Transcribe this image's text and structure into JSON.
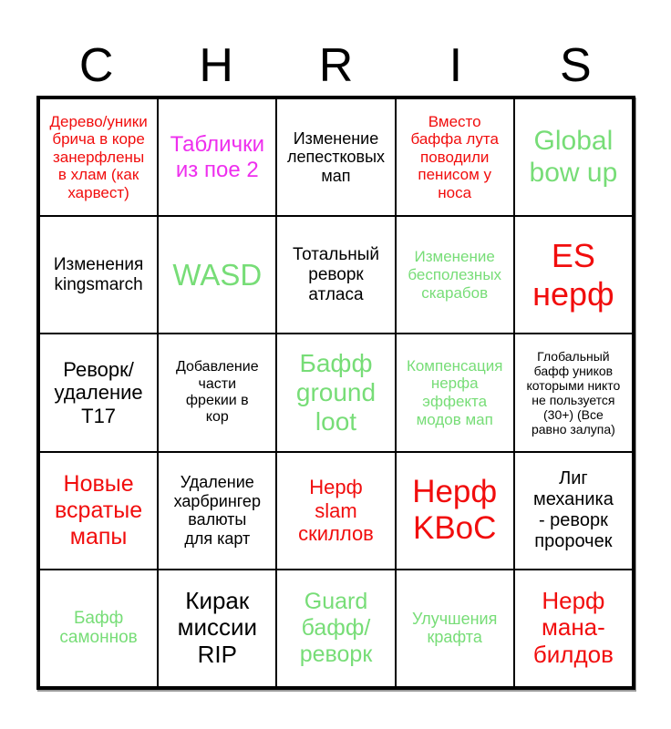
{
  "title": {
    "text": "CHRIS",
    "letters": [
      "C",
      "H",
      "R",
      "I",
      "S"
    ]
  },
  "colors": {
    "black": "#000000",
    "red": "#f10d0d",
    "green": "#77dd77",
    "magenta": "#ee2fee"
  },
  "grid": {
    "rows": 5,
    "cols": 5,
    "cells": [
      {
        "row": 1,
        "col": 1,
        "color": "red",
        "text": "Дерево/уники\nбрича в коре\nзанерфлены\nв хлам (как\nхарвест)"
      },
      {
        "row": 1,
        "col": 2,
        "color": "magenta",
        "text": "Таблички\nиз пое 2"
      },
      {
        "row": 1,
        "col": 3,
        "color": "black",
        "text": "Изменение\nлепестковых\nмап"
      },
      {
        "row": 1,
        "col": 4,
        "color": "red",
        "text": "Вместо\nбаффа лута\nповодили\nпенисом у\nноса"
      },
      {
        "row": 1,
        "col": 5,
        "color": "green",
        "text": "Global\nbow up"
      },
      {
        "row": 2,
        "col": 1,
        "color": "black",
        "text": "Изменения\nkingsmarch"
      },
      {
        "row": 2,
        "col": 2,
        "color": "green",
        "text": "WASD"
      },
      {
        "row": 2,
        "col": 3,
        "color": "black",
        "text": "Тотальный\nреворк\nатласа"
      },
      {
        "row": 2,
        "col": 4,
        "color": "green",
        "text": "Изменение\nбесполезных\nскарабов"
      },
      {
        "row": 2,
        "col": 5,
        "color": "red",
        "text": "ES\nнерф"
      },
      {
        "row": 3,
        "col": 1,
        "color": "black",
        "text": "Реворк/\nудаление\nТ17"
      },
      {
        "row": 3,
        "col": 2,
        "color": "black",
        "text": "Добавление\nчасти\nфрекии в\nкор"
      },
      {
        "row": 3,
        "col": 3,
        "color": "green",
        "text": "Бафф\nground\nloot"
      },
      {
        "row": 3,
        "col": 4,
        "color": "green",
        "text": "Компенсация\nнерфа\nэффекта\nмодов мап"
      },
      {
        "row": 3,
        "col": 5,
        "color": "black",
        "text": "Глобальный\nбафф уников\nкоторыми никто\nне пользуется\n(30+) (Все\nравно залупа)"
      },
      {
        "row": 4,
        "col": 1,
        "color": "red",
        "text": "Новые\nвсратые\nмапы"
      },
      {
        "row": 4,
        "col": 2,
        "color": "black",
        "text": "Удаление\nхарбрингер\nвалюты\nдля карт"
      },
      {
        "row": 4,
        "col": 3,
        "color": "red",
        "text": "Нерф\nslam\nскиллов"
      },
      {
        "row": 4,
        "col": 4,
        "color": "red",
        "text": "Нерф\nKBoC"
      },
      {
        "row": 4,
        "col": 5,
        "color": "black",
        "text": "Лиг\nмеханика\n- реворк\nпророчек"
      },
      {
        "row": 5,
        "col": 1,
        "color": "green",
        "text": "Бафф\nсамоннов"
      },
      {
        "row": 5,
        "col": 2,
        "color": "black",
        "text": "Кирак\nмиссии\nRIP"
      },
      {
        "row": 5,
        "col": 3,
        "color": "green",
        "text": "Guard\nбафф/\nреворк"
      },
      {
        "row": 5,
        "col": 4,
        "color": "green",
        "text": "Улучшения\nкрафта"
      },
      {
        "row": 5,
        "col": 5,
        "color": "red",
        "text": "Нерф\nмана-\nбилдов"
      }
    ]
  }
}
